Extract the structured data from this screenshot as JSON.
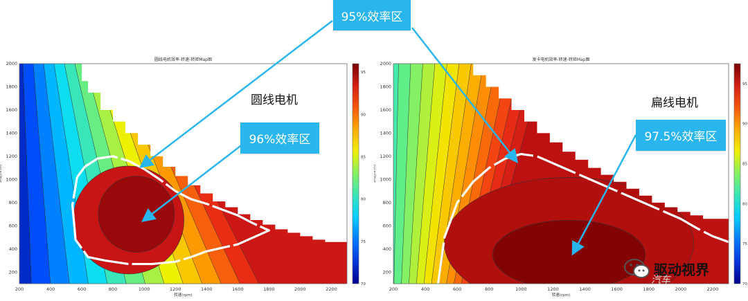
{
  "chart_data": [
    {
      "type": "heatmap",
      "title": "圆线电机效率-转速-转矩Map图",
      "xlabel": "转速(rpm)",
      "ylabel": "转矩(N.m)",
      "xlim": [
        200,
        2300
      ],
      "ylim": [
        100,
        2000
      ],
      "xticks": [
        "200",
        "400",
        "600",
        "800",
        "1000",
        "1200",
        "1400",
        "1600",
        "1800",
        "2000",
        "2200"
      ],
      "yticks": [
        "200",
        "400",
        "600",
        "800",
        "1000",
        "1200",
        "1400",
        "1600",
        "1800",
        "2000"
      ],
      "colorbar": {
        "min": 70,
        "max": 96,
        "ticks": [
          "95",
          "90",
          "85",
          "80",
          "75",
          "70"
        ]
      },
      "annotation": "圆线电机",
      "max_torque_envelope": {
        "x": [
          600,
          640,
          720,
          800,
          880,
          960,
          1040,
          1120,
          1200,
          1280,
          1360,
          1440,
          1520,
          1600,
          1680,
          1760,
          1840,
          1920,
          2000,
          2080,
          2160,
          2300
        ],
        "y": [
          1850,
          1750,
          1600,
          1500,
          1400,
          1300,
          1200,
          1110,
          1030,
          950,
          880,
          810,
          760,
          700,
          650,
          610,
          570,
          540,
          510,
          480,
          460,
          430
        ]
      },
      "zone_96": {
        "x": [
          570,
          620,
          700,
          800,
          900,
          1000,
          1100,
          1200,
          1300,
          1400,
          1500,
          1600,
          1700,
          1800,
          1700,
          1600,
          1400,
          1300,
          1200,
          1050,
          900,
          750,
          640,
          560,
          540
        ],
        "y": [
          1020,
          1110,
          1180,
          1200,
          1160,
          1090,
          1000,
          900,
          830,
          790,
          740,
          690,
          620,
          560,
          500,
          440,
          380,
          330,
          290,
          270,
          270,
          300,
          330,
          480,
          780
        ]
      }
    },
    {
      "type": "heatmap",
      "title": "发卡电机效率-转速-转矩Map图",
      "xlabel": "转速(rpm)",
      "ylabel": "转矩(N.m)",
      "xlim": [
        200,
        2300
      ],
      "ylim": [
        100,
        2000
      ],
      "xticks": [
        "200",
        "400",
        "600",
        "800",
        "1000",
        "1200",
        "1400",
        "1600",
        "1800",
        "2000",
        "2200"
      ],
      "yticks": [
        "200",
        "400",
        "600",
        "800",
        "1000",
        "1200",
        "1400",
        "1600",
        "1800",
        "2000"
      ],
      "colorbar": {
        "min": 70,
        "max": 97.5,
        "ticks": [
          "95",
          "90",
          "85",
          "80",
          "75",
          "70"
        ]
      },
      "annotation": "扁线电机",
      "max_torque_envelope": {
        "x": [
          200,
          640,
          700,
          780,
          860,
          940,
          1020,
          1100,
          1180,
          1260,
          1340,
          1420,
          1500,
          1580,
          1660,
          1740,
          1820,
          1900,
          1980,
          2060,
          2140,
          2300
        ],
        "y": [
          2000,
          2000,
          1900,
          1800,
          1700,
          1600,
          1500,
          1400,
          1320,
          1240,
          1170,
          1100,
          1040,
          980,
          920,
          860,
          800,
          760,
          720,
          690,
          660,
          640
        ]
      },
      "zone_97_5": {
        "x": [
          480,
          520,
          600,
          700,
          800,
          900,
          1000,
          1100,
          1200,
          1300,
          1400,
          1500,
          1600,
          1700,
          1800,
          1900,
          2000,
          2100,
          2200,
          2300
        ],
        "y": [
          100,
          500,
          800,
          980,
          1100,
          1180,
          1220,
          1200,
          1140,
          1080,
          1020,
          960,
          900,
          840,
          780,
          720,
          660,
          580,
          510,
          460
        ]
      }
    }
  ],
  "callouts": [
    {
      "text": "95%效率区"
    },
    {
      "text": "96%效率区"
    },
    {
      "text": "97.5%效率区"
    }
  ],
  "watermark": {
    "text": "驱动视界",
    "sub": "汽车"
  }
}
